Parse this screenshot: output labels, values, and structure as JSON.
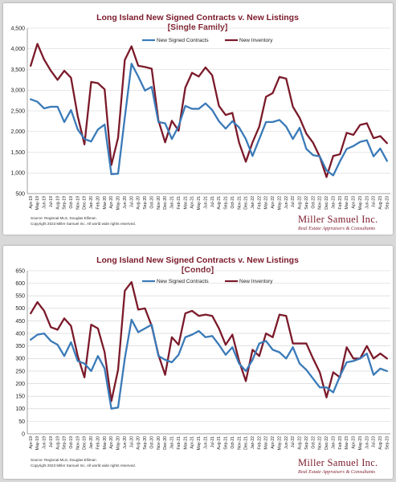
{
  "colors": {
    "new_signed": "#3a7ab8",
    "new_inventory": "#7b1a2a",
    "title": "#7b1a2a"
  },
  "charts": [
    {
      "title_line1": "Long Island New Signed Contracts v. New Listings",
      "title_line2": "[Single Family]",
      "source_line1": "Source: Regional MLS, Douglas Elliman",
      "source_line2": "Copyright 2023 Miller Samuel Inc.  All world wide rights reserved.",
      "brand": "Miller Samuel Inc.",
      "brand_sub": "Real Estate Appraisers & Consultants"
    },
    {
      "title_line1": "Long Island New Signed Contracts v. New Listings",
      "title_line2": "[Condo]",
      "source_line1": "Source: Regional MLS, Douglas Elliman",
      "source_line2": "Copyright 2023 Miller Samuel Inc.  All world wide rights reserved.",
      "brand": "Miller Samuel Inc.",
      "brand_sub": "Real Estate Appraisers & Consultants"
    }
  ],
  "chart_data": [
    {
      "type": "line",
      "x": [
        "Apr-19",
        "May-19",
        "Jun-19",
        "Jul-19",
        "Aug-19",
        "Sep-19",
        "Oct-19",
        "Nov-19",
        "Dec-19",
        "Jan-20",
        "Feb-20",
        "Mar-20",
        "Apr-20",
        "May-20",
        "Jun-20",
        "Jul-20",
        "Aug-20",
        "Sep-20",
        "Oct-20",
        "Nov-20",
        "Dec-20",
        "Jan-21",
        "Feb-21",
        "Mar-21",
        "Apr-21",
        "May-21",
        "Jun-21",
        "Jul-21",
        "Aug-21",
        "Sep-21",
        "Oct-21",
        "Nov-21",
        "Dec-21",
        "Jan-22",
        "Feb-22",
        "Mar-22",
        "Apr-22",
        "May-22",
        "Jun-22",
        "Jul-22",
        "Aug-22",
        "Sep-22",
        "Oct-22",
        "Nov-22",
        "Dec-22",
        "Jan-23",
        "Feb-23",
        "Mar-23",
        "Apr-23",
        "May-23",
        "Jun-23",
        "Jul-23",
        "Aug-23",
        "Sep-23"
      ],
      "series": [
        {
          "name": "New Signed Contracts",
          "values": [
            2780,
            2720,
            2560,
            2600,
            2600,
            2230,
            2520,
            2050,
            1820,
            1760,
            2050,
            2170,
            970,
            980,
            2340,
            3640,
            3330,
            2990,
            3080,
            2230,
            2200,
            1820,
            2130,
            2620,
            2550,
            2550,
            2680,
            2520,
            2250,
            2070,
            2250,
            2100,
            1820,
            1410,
            1820,
            2230,
            2230,
            2280,
            2120,
            1820,
            2090,
            1580,
            1430,
            1400,
            1060,
            940,
            1280,
            1580,
            1650,
            1750,
            1790,
            1400,
            1590,
            1290
          ]
        },
        {
          "name": "New Inventory",
          "values": [
            3590,
            4120,
            3740,
            3470,
            3250,
            3470,
            3300,
            2370,
            1690,
            3200,
            3170,
            3020,
            1190,
            1850,
            3730,
            4060,
            3590,
            3560,
            3520,
            2270,
            1740,
            2260,
            2020,
            3060,
            3420,
            3330,
            3550,
            3360,
            2620,
            2400,
            2450,
            1730,
            1270,
            1740,
            2120,
            2840,
            2930,
            3320,
            3280,
            2600,
            2330,
            1950,
            1730,
            1390,
            900,
            1410,
            1450,
            1970,
            1920,
            2160,
            2200,
            1840,
            1890,
            1720
          ]
        }
      ],
      "ylim": [
        500,
        4500
      ],
      "yticks": [
        "500",
        "1,000",
        "1,500",
        "2,000",
        "2,500",
        "3,000",
        "3,500",
        "4,000",
        "4,500"
      ],
      "grid": true,
      "legend": "top-left"
    },
    {
      "type": "line",
      "x": [
        "Apr-19",
        "May-19",
        "Jun-19",
        "Jul-19",
        "Aug-19",
        "Sep-19",
        "Oct-19",
        "Nov-19",
        "Dec-19",
        "Jan-20",
        "Feb-20",
        "Mar-20",
        "Apr-20",
        "May-20",
        "Jun-20",
        "Jul-20",
        "Aug-20",
        "Sep-20",
        "Oct-20",
        "Nov-20",
        "Dec-20",
        "Jan-21",
        "Feb-21",
        "Mar-21",
        "Apr-21",
        "May-21",
        "Jun-21",
        "Jul-21",
        "Aug-21",
        "Sep-21",
        "Oct-21",
        "Nov-21",
        "Dec-21",
        "Jan-22",
        "Feb-22",
        "Mar-22",
        "Apr-22",
        "May-22",
        "Jun-22",
        "Jul-22",
        "Aug-22",
        "Sep-22",
        "Oct-22",
        "Nov-22",
        "Dec-22",
        "Jan-23",
        "Feb-23",
        "Mar-23",
        "Apr-23",
        "May-23",
        "Jun-23",
        "Jul-23",
        "Aug-23",
        "Sep-23"
      ],
      "series": [
        {
          "name": "New Signed Contracts",
          "values": [
            375,
            395,
            400,
            370,
            355,
            310,
            365,
            290,
            280,
            250,
            310,
            260,
            100,
            105,
            300,
            455,
            405,
            420,
            435,
            310,
            295,
            285,
            315,
            385,
            395,
            410,
            385,
            390,
            355,
            315,
            345,
            280,
            250,
            295,
            360,
            370,
            335,
            325,
            300,
            345,
            280,
            255,
            220,
            185,
            185,
            165,
            230,
            285,
            290,
            300,
            320,
            235,
            260,
            250
          ]
        },
        {
          "name": "New Inventory",
          "values": [
            480,
            525,
            490,
            425,
            415,
            460,
            430,
            310,
            225,
            435,
            420,
            325,
            130,
            255,
            570,
            605,
            495,
            500,
            430,
            315,
            235,
            385,
            355,
            480,
            490,
            470,
            475,
            470,
            420,
            355,
            395,
            290,
            210,
            335,
            310,
            400,
            385,
            475,
            470,
            360,
            360,
            360,
            300,
            245,
            145,
            245,
            225,
            345,
            300,
            300,
            350,
            300,
            320,
            300
          ]
        }
      ],
      "ylim": [
        0,
        650
      ],
      "yticks": [
        "0",
        "50",
        "100",
        "150",
        "200",
        "250",
        "300",
        "350",
        "400",
        "450",
        "500",
        "550",
        "600",
        "650"
      ],
      "grid": true,
      "legend": "top-left"
    }
  ]
}
